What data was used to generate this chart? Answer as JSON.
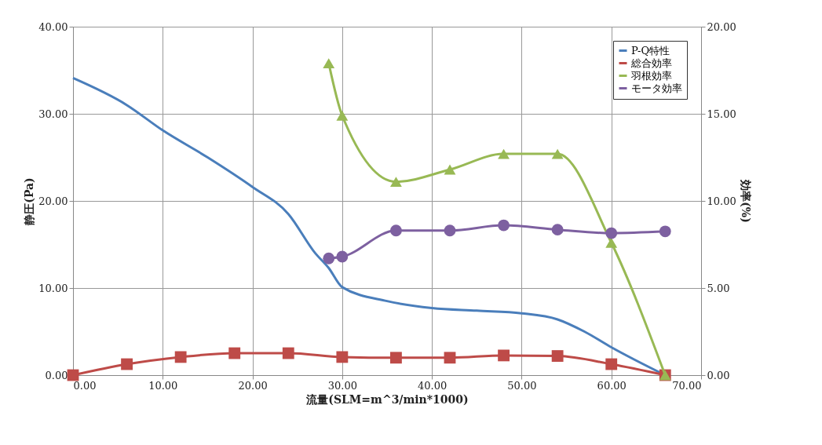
{
  "chart_data": {
    "type": "line",
    "xlabel": "流量(SLM=m^3/min*1000)",
    "ylabel": "静圧(Pa)",
    "y2label": "効率(%)",
    "xlim": [
      0,
      70
    ],
    "xticks": [
      {
        "value": 0,
        "label": "0.00"
      },
      {
        "value": 10,
        "label": "10.00"
      },
      {
        "value": 20,
        "label": "20.00"
      },
      {
        "value": 30,
        "label": "30.00"
      },
      {
        "value": 40,
        "label": "40.00"
      },
      {
        "value": 50,
        "label": "50.00"
      },
      {
        "value": 60,
        "label": "60.00"
      },
      {
        "value": 70,
        "label": "70.00"
      }
    ],
    "ylim": [
      0,
      40
    ],
    "yticks": [
      {
        "value": 0,
        "label": "0.00"
      },
      {
        "value": 10,
        "label": "10.00"
      },
      {
        "value": 20,
        "label": "20.00"
      },
      {
        "value": 30,
        "label": "30.00"
      },
      {
        "value": 40,
        "label": "40.00"
      }
    ],
    "y2lim": [
      0,
      20
    ],
    "y2ticks": [
      {
        "value": 0,
        "label": "0.00"
      },
      {
        "value": 5,
        "label": "5.00"
      },
      {
        "value": 10,
        "label": "10.00"
      },
      {
        "value": 15,
        "label": "15.00"
      },
      {
        "value": 20,
        "label": "20.00"
      }
    ],
    "grid": true,
    "legend": "top right",
    "series": [
      {
        "name": "P-Q特性",
        "color": "#4a7ebb",
        "marker": "none",
        "x": [
          0,
          6,
          10,
          15,
          20,
          24,
          27,
          28.5,
          30,
          35,
          40,
          45,
          50,
          54,
          57,
          60,
          66
        ],
        "values": [
          34.1,
          31,
          28.1,
          25,
          21.6,
          18.5,
          14,
          12.3,
          10.1,
          8.5,
          7.7,
          7.4,
          7.1,
          6.4,
          5,
          3.2,
          0
        ]
      },
      {
        "name": "総合効率",
        "color": "#be4b48",
        "marker": "square",
        "axis": "y2",
        "x": [
          0,
          6,
          12,
          18,
          24,
          30,
          36,
          42,
          48,
          54,
          60,
          66
        ],
        "values": [
          0,
          0.63,
          1.04,
          1.26,
          1.26,
          1.04,
          1.0,
          1.0,
          1.13,
          1.1,
          0.63,
          0
        ]
      },
      {
        "name": "羽根効率",
        "color": "#98b954",
        "marker": "triangle",
        "axis": "y2",
        "x": [
          28.5,
          30,
          36,
          42,
          48,
          54,
          60,
          66
        ],
        "values": [
          17.9,
          14.9,
          11.1,
          11.8,
          12.7,
          12.7,
          7.6,
          0
        ]
      },
      {
        "name": "モータ効率",
        "color": "#7d60a0",
        "marker": "circle",
        "axis": "y2",
        "x": [
          28.5,
          30,
          36,
          42,
          48,
          54,
          60,
          66
        ],
        "values": [
          6.7,
          6.8,
          8.3,
          8.3,
          8.6,
          8.35,
          8.15,
          8.25
        ]
      }
    ]
  }
}
